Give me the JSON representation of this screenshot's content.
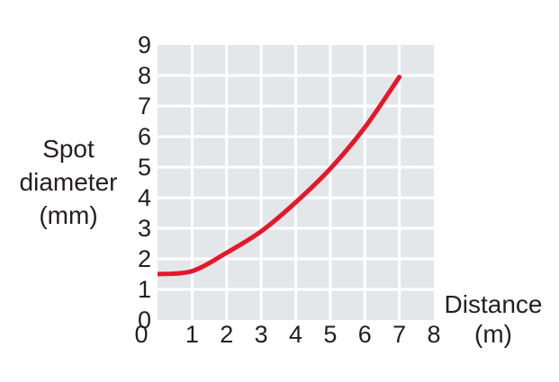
{
  "figure": {
    "background": "#ffffff",
    "y_axis_title": "Spot\ndiameter\n(mm)",
    "x_axis_title": "Distance\n(m)"
  },
  "chart_data": {
    "type": "line",
    "title": "",
    "xlabel": "Distance (m)",
    "ylabel": "Spot diameter (mm)",
    "xlim": [
      0,
      8
    ],
    "ylim": [
      0,
      9
    ],
    "x_ticks": [
      "0",
      "1",
      "2",
      "3",
      "4",
      "5",
      "6",
      "7",
      "8"
    ],
    "y_ticks": [
      "0",
      "1",
      "2",
      "3",
      "4",
      "5",
      "6",
      "7",
      "8",
      "9"
    ],
    "grid": true,
    "legend": false,
    "series": [
      {
        "name": "spot-diameter",
        "x": [
          0,
          1,
          2,
          3,
          4,
          5,
          6,
          7
        ],
        "y": [
          1.5,
          1.6,
          2.2,
          2.9,
          3.85,
          4.95,
          6.3,
          7.95
        ],
        "color": "#e5182b",
        "stroke_width": 5
      }
    ],
    "colors": {
      "plot_cell": "#e3e7e9",
      "grid_line": "#ffffff",
      "text": "#231f20"
    }
  }
}
